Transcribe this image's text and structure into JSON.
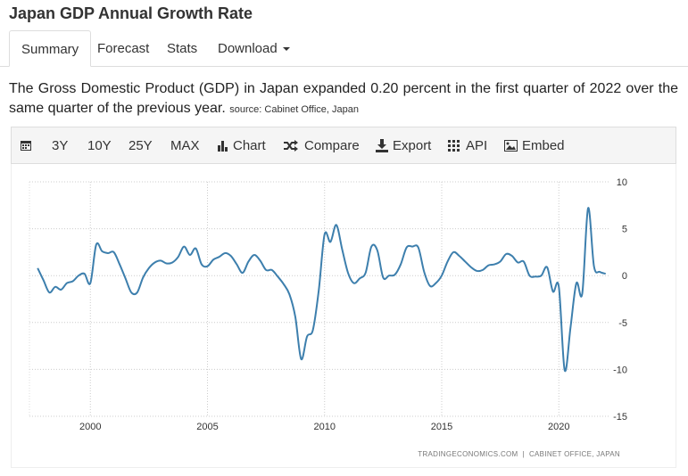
{
  "header": {
    "title": "Japan GDP Annual Growth Rate"
  },
  "tabs": [
    "Summary",
    "Forecast",
    "Stats",
    "Download"
  ],
  "description": {
    "text": "The Gross Domestic Product (GDP) in Japan expanded 0.20 percent in the first quarter of 2022 over the same quarter of the previous year.",
    "source": "source: Cabinet Office, Japan"
  },
  "toolbar": [
    "3Y",
    "10Y",
    "25Y",
    "MAX",
    "Chart",
    "Compare",
    "Export",
    "API",
    "Embed"
  ],
  "chart_data": {
    "type": "line",
    "credit": "TRADINGECONOMICS.COM  |  CABINET OFFICE, JAPAN",
    "x": [
      1997.75,
      1998,
      1998.25,
      1998.5,
      1998.75,
      1999,
      1999.25,
      1999.5,
      1999.75,
      2000,
      2000.25,
      2000.5,
      2000.75,
      2001,
      2001.25,
      2001.5,
      2001.75,
      2002,
      2002.25,
      2002.5,
      2002.75,
      2003,
      2003.25,
      2003.5,
      2003.75,
      2004,
      2004.25,
      2004.5,
      2004.75,
      2005,
      2005.25,
      2005.5,
      2005.75,
      2006,
      2006.25,
      2006.5,
      2006.75,
      2007,
      2007.25,
      2007.5,
      2007.75,
      2008,
      2008.25,
      2008.5,
      2008.75,
      2009,
      2009.25,
      2009.5,
      2009.75,
      2010,
      2010.25,
      2010.5,
      2010.75,
      2011,
      2011.25,
      2011.5,
      2011.75,
      2012,
      2012.25,
      2012.5,
      2012.75,
      2013,
      2013.25,
      2013.5,
      2013.75,
      2014,
      2014.25,
      2014.5,
      2014.75,
      2015,
      2015.25,
      2015.5,
      2015.75,
      2016,
      2016.25,
      2016.5,
      2016.75,
      2017,
      2017.25,
      2017.5,
      2017.75,
      2018,
      2018.25,
      2018.5,
      2018.75,
      2019,
      2019.25,
      2019.5,
      2019.75,
      2020,
      2020.25,
      2020.5,
      2020.75,
      2021,
      2021.25,
      2021.5,
      2021.75,
      2022
    ],
    "series": [
      {
        "name": "GDP Annual Growth Rate",
        "color": "#3d7fad",
        "values": [
          0.8,
          -0.5,
          -1.8,
          -1.2,
          -1.5,
          -0.8,
          -0.6,
          0,
          0.2,
          -0.8,
          3.3,
          2.6,
          2.4,
          2.5,
          1.2,
          -0.3,
          -1.8,
          -1.8,
          -0.2,
          0.8,
          1.4,
          1.6,
          1.3,
          1.4,
          2.0,
          3.1,
          2.2,
          2.9,
          1.2,
          1.0,
          1.7,
          2.0,
          2.4,
          2.1,
          1.2,
          0.3,
          1.5,
          2.2,
          1.6,
          0.6,
          0.6,
          -0.1,
          -0.9,
          -2.0,
          -4.4,
          -8.9,
          -6.5,
          -5.8,
          -1.6,
          4.4,
          3.6,
          5.4,
          2.8,
          0.3,
          -0.8,
          -0.3,
          0.3,
          3.1,
          2.7,
          -0.2,
          0,
          0.1,
          1.2,
          3.0,
          3.1,
          3.0,
          0.4,
          -1.1,
          -0.8,
          0,
          1.5,
          2.5,
          2.1,
          1.5,
          0.9,
          0.5,
          0.6,
          1.1,
          1.2,
          1.5,
          2.3,
          2.1,
          1.4,
          1.5,
          0,
          -0.1,
          0,
          0.9,
          -1.7,
          -1.2,
          -10.1,
          -5.5,
          -0.8,
          -1.9,
          7.2,
          1.0,
          0.4,
          0.2
        ]
      }
    ],
    "xlim": [
      1997.4,
      2022.2
    ],
    "xticks": [
      2000,
      2005,
      2010,
      2015,
      2020
    ],
    "ylim": [
      -15,
      10
    ],
    "yticks": [
      -15,
      -10,
      -5,
      0,
      5,
      10
    ],
    "grid": true
  }
}
